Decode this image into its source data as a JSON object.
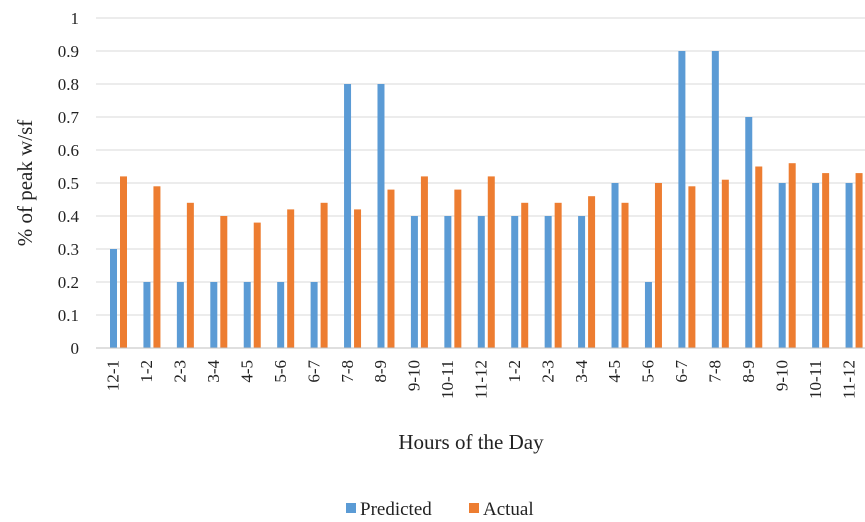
{
  "chart_data": {
    "type": "bar",
    "title": "",
    "xlabel": "Hours of the Day",
    "ylabel": "% of peak w/sf",
    "ylim": [
      0,
      1
    ],
    "yticks": [
      "0",
      "0.1",
      "0.2",
      "0.3",
      "0.4",
      "0.5",
      "0.6",
      "0.7",
      "0.8",
      "0.9",
      "1"
    ],
    "grid": true,
    "legend_position": "bottom",
    "categories": [
      "12-1",
      "1-2",
      "2-3",
      "3-4",
      "4-5",
      "5-6",
      "6-7",
      "7-8",
      "8-9",
      "9-10",
      "10-11",
      "11-12",
      "1-2",
      "2-3",
      "3-4",
      "4-5",
      "5-6",
      "6-7",
      "7-8",
      "8-9",
      "9-10",
      "10-11",
      "11-12"
    ],
    "series": [
      {
        "name": "Predicted",
        "color": "#5B9BD5",
        "values": [
          0.3,
          0.2,
          0.2,
          0.2,
          0.2,
          0.2,
          0.2,
          0.8,
          0.8,
          0.4,
          0.4,
          0.4,
          0.4,
          0.4,
          0.4,
          0.5,
          0.2,
          0.9,
          0.9,
          0.7,
          0.5,
          0.5,
          0.5
        ]
      },
      {
        "name": "Actual",
        "color": "#ED7D31",
        "values": [
          0.52,
          0.49,
          0.44,
          0.4,
          0.38,
          0.42,
          0.44,
          0.42,
          0.48,
          0.52,
          0.48,
          0.52,
          0.44,
          0.44,
          0.46,
          0.44,
          0.5,
          0.49,
          0.51,
          0.55,
          0.56,
          0.53,
          0.53
        ]
      }
    ]
  }
}
